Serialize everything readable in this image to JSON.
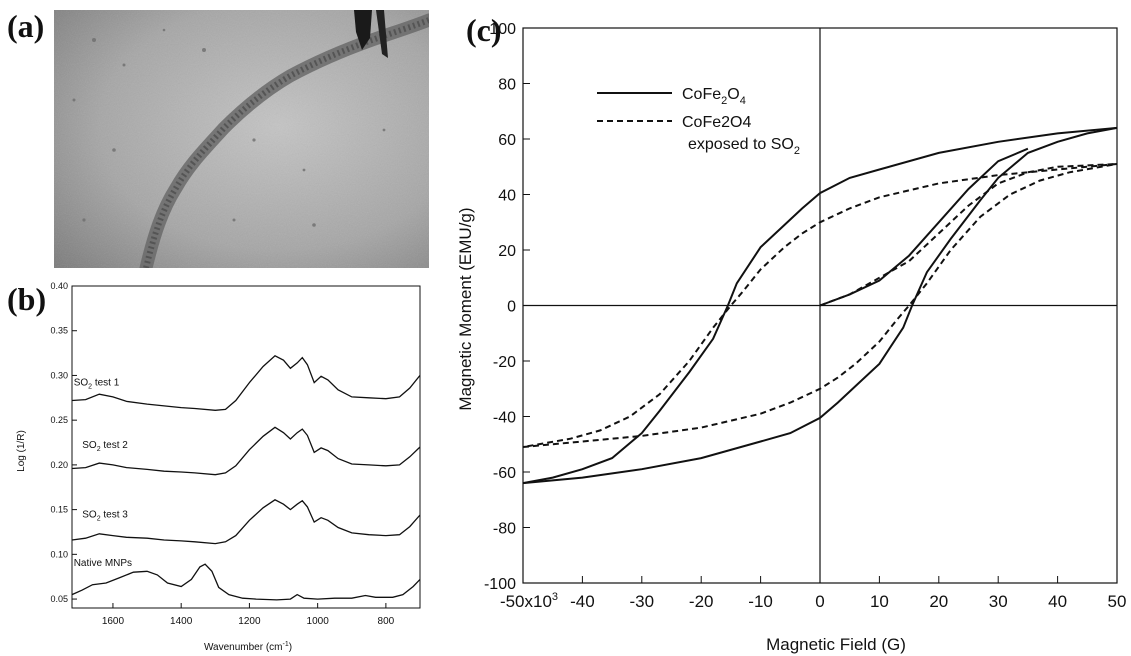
{
  "panels": {
    "a": {
      "label": "(a)"
    },
    "b": {
      "label": "(b)"
    },
    "c": {
      "label": "(c)"
    }
  },
  "colors": {
    "line": "#111111",
    "background": "#ffffff",
    "micrograph": "#9a9a9a"
  },
  "chart_data": [
    {
      "id": "b",
      "type": "line",
      "xlabel": "Wavenumber (cm",
      "xlabel_sup": "-1",
      "xlabel_end": ")",
      "ylabel": "Log (1/R)",
      "xlim": [
        1720,
        700
      ],
      "ylim": [
        0.04,
        0.4
      ],
      "xticks": [
        1600,
        1400,
        1200,
        1000,
        800
      ],
      "yticks": [
        0.05,
        0.1,
        0.15,
        0.2,
        0.25,
        0.3,
        0.35,
        0.4
      ],
      "ytick_labels": [
        "0.05",
        "0.10",
        "0.15",
        "0.20",
        "0.25",
        "0.30",
        "0.35",
        "0.40"
      ],
      "series": [
        {
          "name": "SO2 test 1",
          "label_main": "SO",
          "label_sub": "2",
          "label_rest": " test 1",
          "label_x": 1715,
          "label_y": 0.289,
          "points": [
            [
              1720,
              0.272
            ],
            [
              1680,
              0.273
            ],
            [
              1640,
              0.279
            ],
            [
              1600,
              0.276
            ],
            [
              1560,
              0.271
            ],
            [
              1500,
              0.268
            ],
            [
              1450,
              0.266
            ],
            [
              1400,
              0.264
            ],
            [
              1360,
              0.263
            ],
            [
              1300,
              0.261
            ],
            [
              1270,
              0.262
            ],
            [
              1240,
              0.272
            ],
            [
              1200,
              0.292
            ],
            [
              1160,
              0.31
            ],
            [
              1125,
              0.322
            ],
            [
              1100,
              0.317
            ],
            [
              1080,
              0.308
            ],
            [
              1060,
              0.314
            ],
            [
              1045,
              0.32
            ],
            [
              1030,
              0.312
            ],
            [
              1010,
              0.292
            ],
            [
              990,
              0.299
            ],
            [
              970,
              0.295
            ],
            [
              940,
              0.284
            ],
            [
              900,
              0.276
            ],
            [
              850,
              0.275
            ],
            [
              800,
              0.274
            ],
            [
              760,
              0.276
            ],
            [
              730,
              0.286
            ],
            [
              700,
              0.3
            ]
          ]
        },
        {
          "name": "SO2 test 2",
          "label_main": "SO",
          "label_sub": "2",
          "label_rest": " test 2",
          "label_x": 1690,
          "label_y": 0.219,
          "points": [
            [
              1720,
              0.196
            ],
            [
              1680,
              0.197
            ],
            [
              1640,
              0.202
            ],
            [
              1600,
              0.2
            ],
            [
              1560,
              0.197
            ],
            [
              1500,
              0.195
            ],
            [
              1450,
              0.193
            ],
            [
              1400,
              0.192
            ],
            [
              1360,
              0.191
            ],
            [
              1300,
              0.189
            ],
            [
              1270,
              0.191
            ],
            [
              1240,
              0.199
            ],
            [
              1200,
              0.217
            ],
            [
              1160,
              0.232
            ],
            [
              1125,
              0.242
            ],
            [
              1100,
              0.236
            ],
            [
              1080,
              0.229
            ],
            [
              1060,
              0.236
            ],
            [
              1045,
              0.24
            ],
            [
              1030,
              0.233
            ],
            [
              1010,
              0.214
            ],
            [
              990,
              0.219
            ],
            [
              970,
              0.216
            ],
            [
              940,
              0.207
            ],
            [
              900,
              0.201
            ],
            [
              850,
              0.2
            ],
            [
              800,
              0.199
            ],
            [
              760,
              0.2
            ],
            [
              730,
              0.209
            ],
            [
              700,
              0.22
            ]
          ]
        },
        {
          "name": "SO2 test 3",
          "label_main": "SO",
          "label_sub": "2",
          "label_rest": " test 3",
          "label_x": 1690,
          "label_y": 0.141,
          "points": [
            [
              1720,
              0.116
            ],
            [
              1680,
              0.118
            ],
            [
              1640,
              0.123
            ],
            [
              1600,
              0.121
            ],
            [
              1560,
              0.119
            ],
            [
              1500,
              0.118
            ],
            [
              1450,
              0.116
            ],
            [
              1400,
              0.115
            ],
            [
              1360,
              0.114
            ],
            [
              1300,
              0.112
            ],
            [
              1270,
              0.114
            ],
            [
              1240,
              0.121
            ],
            [
              1200,
              0.138
            ],
            [
              1160,
              0.152
            ],
            [
              1125,
              0.161
            ],
            [
              1100,
              0.156
            ],
            [
              1080,
              0.15
            ],
            [
              1060,
              0.156
            ],
            [
              1045,
              0.16
            ],
            [
              1030,
              0.153
            ],
            [
              1010,
              0.136
            ],
            [
              990,
              0.141
            ],
            [
              970,
              0.138
            ],
            [
              940,
              0.13
            ],
            [
              900,
              0.124
            ],
            [
              850,
              0.122
            ],
            [
              800,
              0.121
            ],
            [
              760,
              0.122
            ],
            [
              730,
              0.131
            ],
            [
              700,
              0.144
            ]
          ]
        },
        {
          "name": "Native MNPs",
          "label_main": "Native MNPs",
          "label_sub": "",
          "label_rest": "",
          "label_x": 1715,
          "label_y": 0.087,
          "points": [
            [
              1720,
              0.055
            ],
            [
              1690,
              0.06
            ],
            [
              1660,
              0.066
            ],
            [
              1620,
              0.068
            ],
            [
              1580,
              0.074
            ],
            [
              1540,
              0.08
            ],
            [
              1500,
              0.081
            ],
            [
              1470,
              0.077
            ],
            [
              1440,
              0.068
            ],
            [
              1400,
              0.064
            ],
            [
              1370,
              0.072
            ],
            [
              1345,
              0.086
            ],
            [
              1330,
              0.089
            ],
            [
              1310,
              0.081
            ],
            [
              1290,
              0.063
            ],
            [
              1260,
              0.055
            ],
            [
              1220,
              0.051
            ],
            [
              1180,
              0.05
            ],
            [
              1120,
              0.049
            ],
            [
              1080,
              0.05
            ],
            [
              1060,
              0.055
            ],
            [
              1040,
              0.051
            ],
            [
              1000,
              0.05
            ],
            [
              950,
              0.051
            ],
            [
              900,
              0.051
            ],
            [
              860,
              0.054
            ],
            [
              830,
              0.052
            ],
            [
              780,
              0.052
            ],
            [
              750,
              0.055
            ],
            [
              720,
              0.064
            ],
            [
              700,
              0.072
            ]
          ]
        }
      ]
    },
    {
      "id": "c",
      "type": "line",
      "xlabel": "Magnetic Field (G)",
      "ylabel": "Magnetic Moment (EMU/g)",
      "xlim": [
        -50000,
        50000
      ],
      "ylim": [
        -100,
        100
      ],
      "xticks": [
        -50000,
        -40000,
        -30000,
        -20000,
        -10000,
        0,
        10000,
        20000,
        30000,
        40000,
        50000
      ],
      "xtick_labels": [
        "-50x10",
        "-40",
        "-30",
        "-20",
        "-10",
        "0",
        "10",
        "20",
        "30",
        "40",
        "50"
      ],
      "xtick_first_sup": "3",
      "yticks": [
        -100,
        -80,
        -60,
        -40,
        -20,
        0,
        20,
        40,
        60,
        80,
        100
      ],
      "ytick_labels": [
        "-100",
        "-80",
        "-60",
        "-40",
        "-20",
        "0",
        "20",
        "40",
        "60",
        "80",
        "100"
      ],
      "legend_position": "top-left",
      "series": [
        {
          "name": "CoFe2O4",
          "legend_parts": [
            "CoFe",
            "2",
            "O",
            "4"
          ],
          "dash": "solid",
          "branches": [
            [
              [
                50000,
                64
              ],
              [
                40000,
                62
              ],
              [
                30000,
                59
              ],
              [
                20000,
                55
              ],
              [
                10000,
                49
              ],
              [
                5000,
                46
              ],
              [
                0,
                40.5
              ],
              [
                -3000,
                35
              ],
              [
                -6000,
                29
              ],
              [
                -10000,
                21
              ],
              [
                -14000,
                8
              ],
              [
                -15500,
                0
              ],
              [
                -18000,
                -12
              ],
              [
                -22000,
                -24
              ],
              [
                -27000,
                -38
              ],
              [
                -30000,
                -46
              ],
              [
                -35000,
                -55
              ],
              [
                -40000,
                -59
              ],
              [
                -45000,
                -62
              ],
              [
                -50000,
                -64
              ]
            ],
            [
              [
                -50000,
                -64
              ],
              [
                -40000,
                -62
              ],
              [
                -30000,
                -59
              ],
              [
                -20000,
                -55
              ],
              [
                -10000,
                -49
              ],
              [
                -5000,
                -46
              ],
              [
                0,
                -40.5
              ],
              [
                3000,
                -35
              ],
              [
                6000,
                -29
              ],
              [
                10000,
                -21
              ],
              [
                14000,
                -8
              ],
              [
                15500,
                0
              ],
              [
                18000,
                12
              ],
              [
                22000,
                24
              ],
              [
                27000,
                38
              ],
              [
                30000,
                46
              ],
              [
                35000,
                55
              ],
              [
                40000,
                59
              ],
              [
                45000,
                62
              ],
              [
                50000,
                64
              ]
            ],
            [
              [
                0,
                0
              ],
              [
                5000,
                4
              ],
              [
                10000,
                9
              ],
              [
                15000,
                18
              ],
              [
                20000,
                30
              ],
              [
                25000,
                42
              ],
              [
                30000,
                52
              ],
              [
                35000,
                56.5
              ]
            ]
          ]
        },
        {
          "name": "CoFe2O4 exposed to SO2",
          "legend_parts": [
            "CoFe2O4"
          ],
          "legend_line2": [
            "exposed to SO",
            "2"
          ],
          "dash": "dashed",
          "branches": [
            [
              [
                50000,
                51
              ],
              [
                40000,
                49
              ],
              [
                30000,
                47
              ],
              [
                20000,
                44
              ],
              [
                10000,
                39
              ],
              [
                5000,
                35
              ],
              [
                0,
                30
              ],
              [
                -3000,
                26
              ],
              [
                -6000,
                21
              ],
              [
                -10000,
                13
              ],
              [
                -13000,
                5
              ],
              [
                -15000,
                0
              ],
              [
                -18000,
                -8
              ],
              [
                -22000,
                -20
              ],
              [
                -27000,
                -32
              ],
              [
                -32000,
                -40
              ],
              [
                -37000,
                -45
              ],
              [
                -42000,
                -48
              ],
              [
                -50000,
                -51
              ]
            ],
            [
              [
                -50000,
                -51
              ],
              [
                -40000,
                -49
              ],
              [
                -30000,
                -47
              ],
              [
                -20000,
                -44
              ],
              [
                -10000,
                -39
              ],
              [
                -5000,
                -35
              ],
              [
                0,
                -30
              ],
              [
                3000,
                -26
              ],
              [
                6000,
                -21
              ],
              [
                10000,
                -13
              ],
              [
                13000,
                -5
              ],
              [
                15000,
                0
              ],
              [
                18000,
                8
              ],
              [
                22000,
                20
              ],
              [
                27000,
                32
              ],
              [
                32000,
                40
              ],
              [
                37000,
                45
              ],
              [
                42000,
                48
              ],
              [
                50000,
                51
              ]
            ],
            [
              [
                0,
                0
              ],
              [
                5000,
                4
              ],
              [
                10000,
                10
              ],
              [
                15000,
                16
              ],
              [
                20000,
                26
              ],
              [
                25000,
                36
              ],
              [
                30000,
                44
              ],
              [
                35000,
                48
              ],
              [
                40000,
                50
              ],
              [
                50000,
                51
              ]
            ]
          ]
        }
      ]
    }
  ]
}
